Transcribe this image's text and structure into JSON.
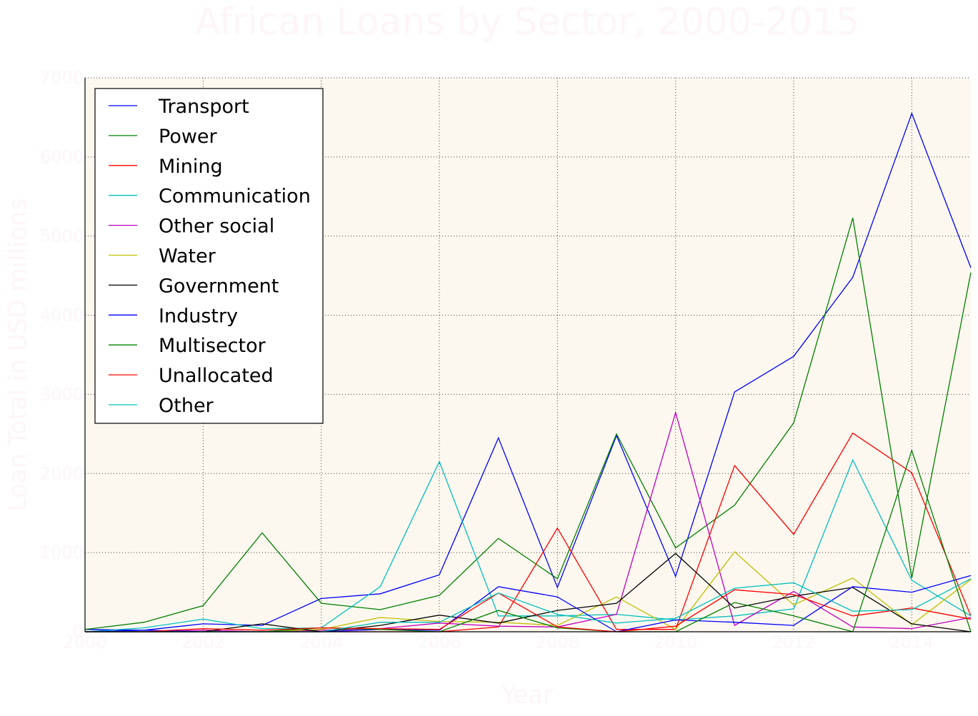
{
  "chart_data": {
    "type": "line",
    "title": "African Loans by Sector, 2000-2015",
    "xlabel": "Year",
    "ylabel": "Loan Total in USD millions",
    "x": [
      2000,
      2001,
      2002,
      2003,
      2004,
      2005,
      2006,
      2007,
      2008,
      2009,
      2010,
      2011,
      2012,
      2013,
      2014,
      2015
    ],
    "xlim": [
      2000,
      2015
    ],
    "ylim": [
      0,
      7000
    ],
    "xticks": [
      "2000",
      "2002",
      "2004",
      "2006",
      "2008",
      "2010",
      "2012",
      "2014"
    ],
    "yticks": [
      "0",
      "1000",
      "2000",
      "3000",
      "4000",
      "5000",
      "6000",
      "7000"
    ],
    "grid": true,
    "legend_position": "upper-left",
    "plot_background": "#fdf8ef",
    "series": [
      {
        "name": "Transport",
        "color": "#0000ff",
        "values": [
          30,
          20,
          100,
          80,
          420,
          480,
          720,
          2450,
          560,
          2480,
          700,
          3030,
          3480,
          4480,
          6550,
          4600
        ]
      },
      {
        "name": "Power",
        "color": "#008000",
        "values": [
          30,
          120,
          330,
          1250,
          360,
          280,
          460,
          1180,
          670,
          2500,
          1060,
          1600,
          2640,
          5230,
          680,
          4540
        ]
      },
      {
        "name": "Mining",
        "color": "#ff0000",
        "values": [
          0,
          0,
          0,
          0,
          0,
          0,
          0,
          60,
          1310,
          30,
          30,
          2100,
          1230,
          2510,
          2010,
          200
        ]
      },
      {
        "name": "Communication",
        "color": "#00bfbf",
        "values": [
          0,
          50,
          160,
          40,
          50,
          570,
          2150,
          200,
          200,
          220,
          150,
          200,
          290,
          2170,
          650,
          200
        ]
      },
      {
        "name": "Other social",
        "color": "#bf00bf",
        "values": [
          0,
          0,
          20,
          0,
          20,
          40,
          110,
          70,
          60,
          220,
          2770,
          80,
          510,
          60,
          40,
          180
        ]
      },
      {
        "name": "Water",
        "color": "#bfbf00",
        "values": [
          0,
          0,
          0,
          0,
          30,
          180,
          130,
          120,
          80,
          440,
          30,
          1010,
          340,
          680,
          90,
          660
        ]
      },
      {
        "name": "Government",
        "color": "#000000",
        "values": [
          0,
          0,
          0,
          100,
          0,
          80,
          210,
          110,
          270,
          360,
          990,
          300,
          450,
          560,
          100,
          0
        ]
      },
      {
        "name": "Industry",
        "color": "#0000ff",
        "values": [
          0,
          20,
          0,
          0,
          0,
          30,
          20,
          570,
          440,
          0,
          150,
          120,
          80,
          570,
          500,
          710
        ]
      },
      {
        "name": "Multisector",
        "color": "#008000",
        "values": [
          0,
          0,
          0,
          0,
          50,
          30,
          0,
          270,
          50,
          0,
          0,
          370,
          200,
          0,
          2290,
          0
        ]
      },
      {
        "name": "Unallocated",
        "color": "#ff0000",
        "values": [
          0,
          0,
          40,
          20,
          50,
          40,
          30,
          490,
          60,
          0,
          70,
          530,
          470,
          200,
          300,
          160
        ]
      },
      {
        "name": "Other",
        "color": "#00bfbf",
        "values": [
          0,
          0,
          0,
          0,
          0,
          120,
          120,
          490,
          220,
          110,
          170,
          550,
          620,
          260,
          280,
          670
        ]
      }
    ]
  }
}
